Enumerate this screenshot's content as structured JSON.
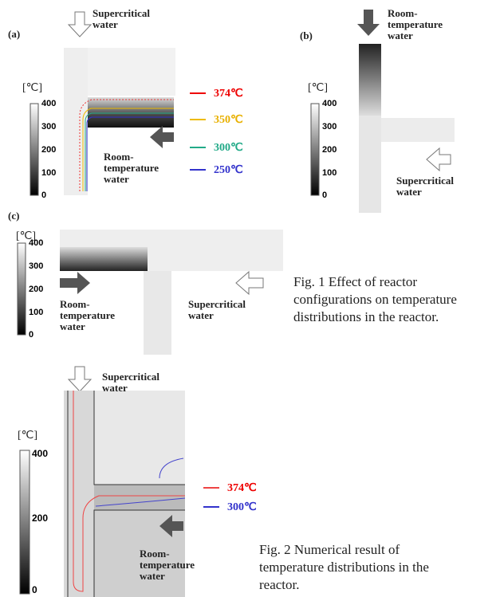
{
  "panels": [
    {
      "label": "(a)",
      "top_label": "Supercritical water",
      "side_label": "Room-temperature water",
      "unit": "[℃]",
      "scale": [
        "400",
        "300",
        "200",
        "100",
        "0"
      ],
      "legend": [
        "374℃",
        "350℃",
        "300℃",
        "250℃"
      ]
    },
    {
      "label": "(b)",
      "top_label": "Room-temperature water",
      "side_label": "Supercritical water",
      "unit": "[℃]",
      "scale": [
        "400",
        "300",
        "200",
        "100",
        "0"
      ]
    },
    {
      "label": "(c)",
      "left_label": "Room-temperature water",
      "right_label": "Supercritical water",
      "unit": "[℃]",
      "scale": [
        "400",
        "300",
        "200",
        "100",
        "0"
      ]
    },
    {
      "top_label": "Supercritical water",
      "side_label": "Room-temperature water",
      "unit": "[℃]",
      "scale": [
        "400",
        "200",
        "0"
      ],
      "legend": [
        "374℃",
        "300℃"
      ]
    }
  ],
  "captions": [
    "Fig. 1 Effect of reactor configurations on temperature distributions in the reactor.",
    "Fig. 2 Numerical result of temperature distributions in the reactor."
  ]
}
